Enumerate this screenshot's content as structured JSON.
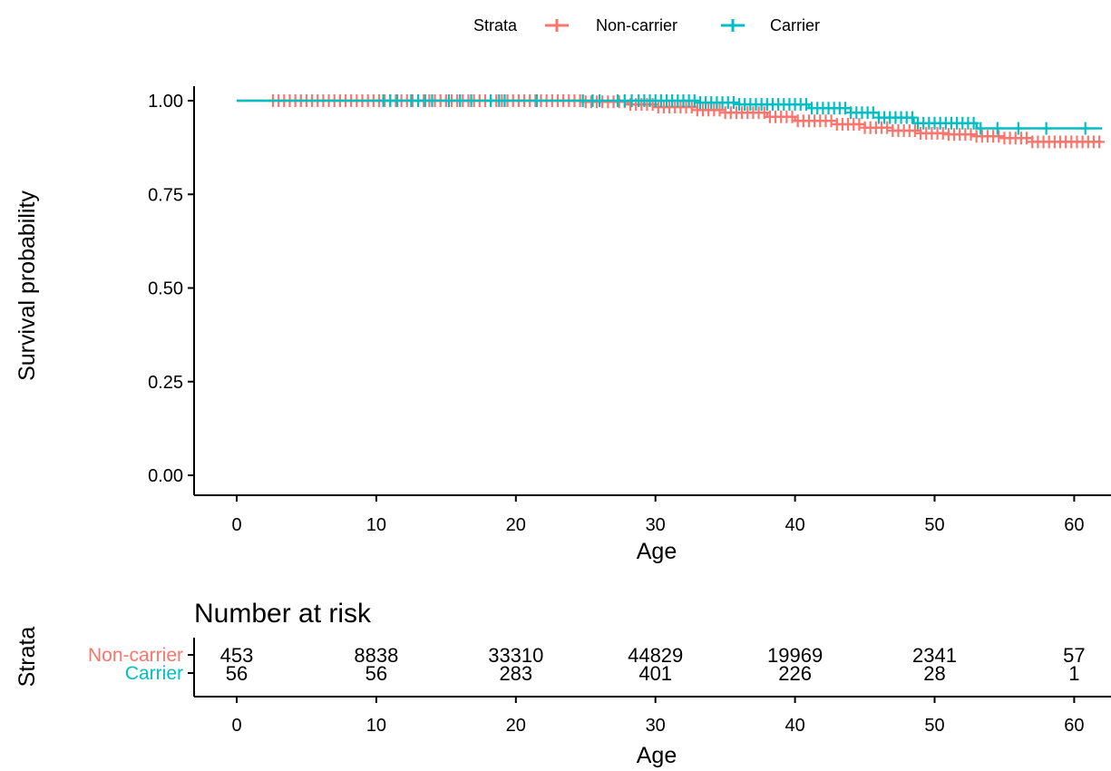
{
  "chart_data": [
    {
      "type": "line",
      "subtype": "kaplan-meier step curve with censor marks",
      "xlabel": "Age",
      "ylabel": "Survival probability",
      "xlim": [
        -3,
        62
      ],
      "ylim": [
        0,
        1.0
      ],
      "x_ticks": [
        0,
        10,
        20,
        30,
        40,
        50,
        60
      ],
      "y_ticks": [
        0.0,
        0.25,
        0.5,
        0.75,
        1.0
      ],
      "y_tick_labels": [
        "0.00",
        "0.25",
        "0.50",
        "0.75",
        "1.00"
      ],
      "grid": false,
      "legend": {
        "title": "Strata",
        "position": "top",
        "entries": [
          "Non-carrier",
          "Carrier"
        ]
      },
      "series": [
        {
          "name": "Non-carrier",
          "color": "#F8766D",
          "x": [
            0,
            20,
            25,
            28,
            30,
            33,
            35,
            38,
            40,
            43,
            45,
            47,
            49,
            51,
            53,
            55,
            57,
            62
          ],
          "y": [
            1.0,
            1.0,
            0.997,
            0.99,
            0.983,
            0.975,
            0.968,
            0.957,
            0.946,
            0.937,
            0.928,
            0.92,
            0.913,
            0.91,
            0.905,
            0.9,
            0.89,
            0.89
          ],
          "censor_x": [
            2.6,
            3.0,
            3.4,
            3.8,
            4.2,
            4.6,
            5.0,
            5.4,
            5.8,
            6.2,
            6.6,
            7.0,
            7.4,
            7.8,
            8.2,
            8.6,
            9.0,
            9.4,
            9.8,
            10.2,
            10.6,
            11,
            11.4,
            11.8,
            12.2,
            12.6,
            13,
            13.4,
            13.8,
            14.2,
            14.6,
            15,
            15.4,
            15.8,
            16.2,
            16.6,
            17,
            17.4,
            17.8,
            18.2,
            18.6,
            19,
            19.4,
            19.8,
            20.2,
            20.6,
            21,
            21.4,
            21.8,
            22.2,
            22.6,
            23,
            23.4,
            23.8,
            24.2,
            24.6,
            25,
            25.4,
            25.8,
            26.2,
            26.6,
            27,
            27.4,
            27.8,
            28.2,
            28.6,
            29,
            29.4,
            29.8,
            30.2,
            30.6,
            31,
            31.4,
            31.8,
            32.2,
            32.6,
            33,
            33.4,
            33.8,
            34.2,
            34.6,
            35,
            35.4,
            35.8,
            36.2,
            36.6,
            37,
            37.4,
            37.8,
            38.2,
            38.6,
            39,
            39.4,
            39.8,
            40.2,
            40.6,
            41,
            41.4,
            41.8,
            42.2,
            42.6,
            43,
            43.4,
            43.8,
            44.2,
            44.6,
            45,
            45.4,
            45.8,
            46.2,
            46.6,
            47,
            47.4,
            47.8,
            48.2,
            48.6,
            49,
            49.4,
            49.8,
            50.2,
            50.6,
            51,
            51.4,
            51.8,
            52.2,
            52.6,
            53,
            53.4,
            53.8,
            54.2,
            54.6,
            55,
            55.4,
            55.8,
            56.2,
            56.6,
            57,
            57.4,
            57.8,
            58.2,
            58.6,
            59,
            59.4,
            59.8,
            60.2,
            60.6,
            61,
            61.4,
            61.8
          ]
        },
        {
          "name": "Carrier",
          "color": "#00BFC4",
          "x": [
            0,
            28,
            33,
            36,
            41,
            44,
            46,
            48.5,
            53,
            55,
            62
          ],
          "y": [
            1.0,
            1.0,
            0.995,
            0.99,
            0.98,
            0.968,
            0.955,
            0.94,
            0.926,
            0.926,
            0.926
          ],
          "censor_x": [
            10.5,
            11,
            11.5,
            12.5,
            13,
            13.5,
            14,
            15.2,
            16,
            16.8,
            18.2,
            18.8,
            19.2,
            21.5,
            24.8,
            25.5,
            26,
            27.3,
            27.8,
            28.3,
            28.8,
            29.2,
            29.6,
            30,
            30.4,
            30.8,
            31.2,
            31.6,
            32,
            32.4,
            32.8,
            33.2,
            33.6,
            34,
            34.4,
            34.8,
            35.2,
            35.6,
            36,
            36.4,
            36.8,
            37.2,
            37.6,
            38,
            38.4,
            38.8,
            39.2,
            39.6,
            40,
            40.4,
            40.8,
            41.2,
            41.6,
            42,
            42.4,
            42.8,
            43.2,
            43.6,
            44,
            44.4,
            44.8,
            45.2,
            45.6,
            46,
            46.4,
            46.8,
            47.2,
            47.6,
            48,
            48.4,
            48.8,
            49.2,
            49.6,
            50,
            50.4,
            50.8,
            51.2,
            51.6,
            52,
            52.4,
            52.8,
            53.3,
            54.5,
            56,
            58,
            60.8
          ]
        }
      ]
    },
    {
      "type": "table",
      "title": "Number at risk",
      "xlabel": "Age",
      "ylabel": "Strata",
      "x_ticks": [
        0,
        10,
        20,
        30,
        40,
        50,
        60
      ],
      "rows": [
        {
          "label": "Non-carrier",
          "color": "#F8766D",
          "values": [
            "453",
            "8838",
            "33310",
            "44829",
            "19969",
            "2341",
            "57"
          ]
        },
        {
          "label": "Carrier",
          "color": "#00BFC4",
          "values": [
            "56",
            "56",
            "283",
            "401",
            "226",
            "28",
            "1"
          ]
        }
      ]
    }
  ]
}
